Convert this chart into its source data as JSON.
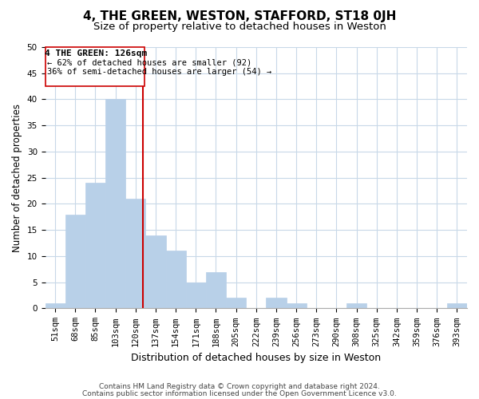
{
  "title": "4, THE GREEN, WESTON, STAFFORD, ST18 0JH",
  "subtitle": "Size of property relative to detached houses in Weston",
  "xlabel": "Distribution of detached houses by size in Weston",
  "ylabel": "Number of detached properties",
  "bar_labels": [
    "51sqm",
    "68sqm",
    "85sqm",
    "103sqm",
    "120sqm",
    "137sqm",
    "154sqm",
    "171sqm",
    "188sqm",
    "205sqm",
    "222sqm",
    "239sqm",
    "256sqm",
    "273sqm",
    "290sqm",
    "308sqm",
    "325sqm",
    "342sqm",
    "359sqm",
    "376sqm",
    "393sqm"
  ],
  "bar_values": [
    1,
    18,
    24,
    40,
    21,
    14,
    11,
    5,
    7,
    2,
    0,
    2,
    1,
    0,
    0,
    1,
    0,
    0,
    0,
    0,
    1
  ],
  "bar_color": "#b8d0e8",
  "bar_edge_color": "#b8d0e8",
  "property_label": "4 THE GREEN: 126sqm",
  "annotation_line1": "← 62% of detached houses are smaller (92)",
  "annotation_line2": "36% of semi-detached houses are larger (54) →",
  "vline_color": "#cc0000",
  "annotation_box_color": "#ffffff",
  "annotation_box_edge": "#cc0000",
  "ylim": [
    0,
    50
  ],
  "yticks": [
    0,
    5,
    10,
    15,
    20,
    25,
    30,
    35,
    40,
    45,
    50
  ],
  "footnote1": "Contains HM Land Registry data © Crown copyright and database right 2024.",
  "footnote2": "Contains public sector information licensed under the Open Government Licence v3.0.",
  "bg_color": "#ffffff",
  "grid_color": "#c8d8e8",
  "title_fontsize": 11,
  "subtitle_fontsize": 9.5,
  "xlabel_fontsize": 9,
  "ylabel_fontsize": 8.5,
  "tick_fontsize": 7.5,
  "footnote_fontsize": 6.5,
  "annotation_fontsize": 8
}
